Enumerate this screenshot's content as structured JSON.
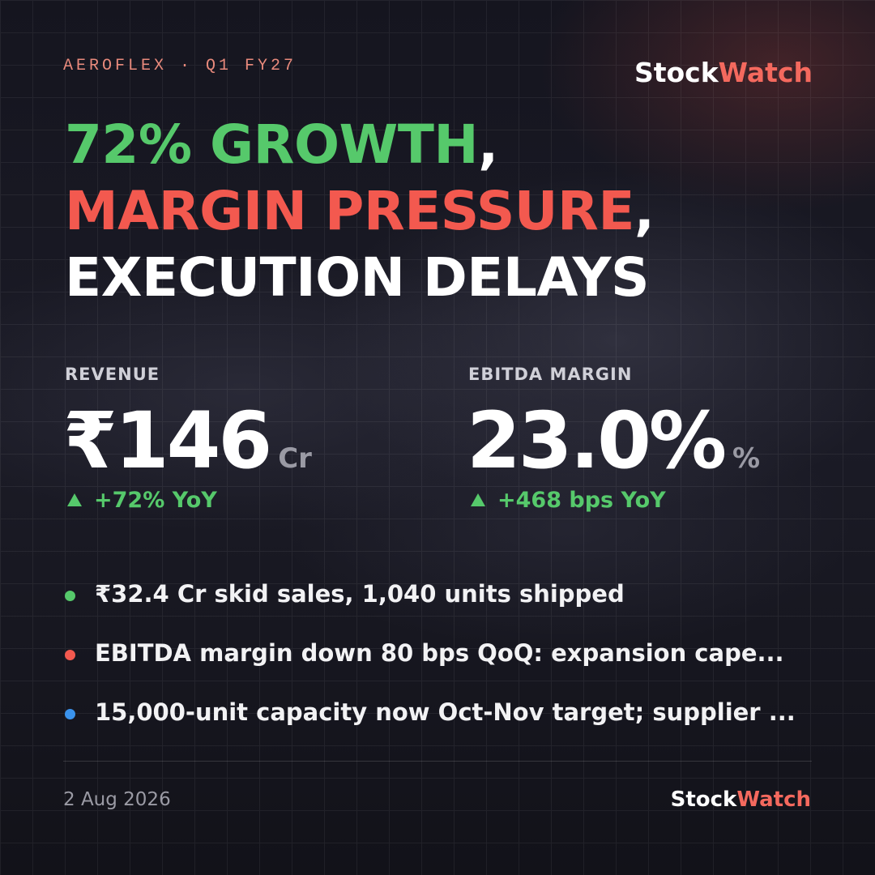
{
  "header": {
    "eyebrow": "AEROFLEX · Q1 FY27",
    "brand": [
      "Stock",
      "Watch"
    ]
  },
  "headline": [
    [
      {
        "text": "72% GROWTH",
        "color": "#56c96b"
      },
      {
        "text": ",",
        "color": "#ffffff"
      }
    ],
    [
      {
        "text": "MARGIN PRESSURE",
        "color": "#f3594f"
      },
      {
        "text": ",",
        "color": "#ffffff"
      }
    ],
    [
      {
        "text": "EXECUTION DELAYS",
        "color": "#ffffff"
      }
    ]
  ],
  "metrics": [
    {
      "label": "REVENUE",
      "value": "₹146",
      "unit": "Cr",
      "change": "+72% YoY"
    },
    {
      "label": "EBITDA MARGIN",
      "value": "23.0%",
      "unit": "%",
      "change": "+468 bps YoY"
    }
  ],
  "bullets": [
    {
      "text": "₹32.4 Cr skid sales, 1,040 units shipped",
      "color": "#56c96b"
    },
    {
      "text": "EBITDA margin down 80 bps QoQ: expansion cape...",
      "color": "#f3594f"
    },
    {
      "text": "15,000-unit capacity now Oct-Nov target; supplier ...",
      "color": "#3a92ec"
    }
  ],
  "footer": {
    "date": "2 Aug 2026",
    "brand": [
      "Stock",
      "Watch"
    ]
  }
}
